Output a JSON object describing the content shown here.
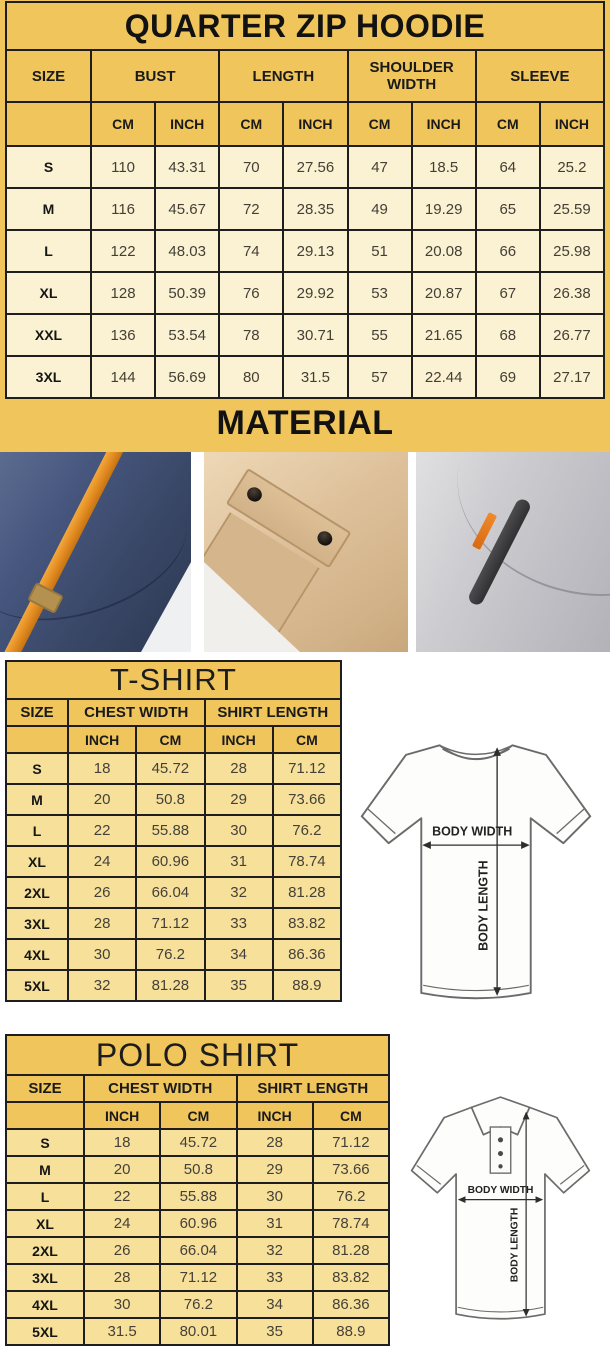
{
  "colors": {
    "gold": "#EFC55C",
    "hoodie_cell": "#FBF2D3",
    "shirt_cell": "#F6E09A",
    "border": "#1E1E1E",
    "navy_fabric": "#3A4868",
    "orange_accent": "#E08A21",
    "khaki_fabric": "#D9BB93",
    "gray_fabric": "#C7C7CB"
  },
  "hoodie": {
    "title": "QUARTER ZIP HOODIE",
    "size_label": "SIZE",
    "groups": [
      "BUST",
      "LENGTH",
      "SHOULDER WIDTH",
      "SLEEVE"
    ],
    "units": [
      "",
      "CM",
      "INCH",
      "CM",
      "INCH",
      "CM",
      "INCH",
      "CM",
      "INCH"
    ],
    "rows": [
      [
        "S",
        "110",
        "43.31",
        "70",
        "27.56",
        "47",
        "18.5",
        "64",
        "25.2"
      ],
      [
        "M",
        "116",
        "45.67",
        "72",
        "28.35",
        "49",
        "19.29",
        "65",
        "25.59"
      ],
      [
        "L",
        "122",
        "48.03",
        "74",
        "29.13",
        "51",
        "20.08",
        "66",
        "25.98"
      ],
      [
        "XL",
        "128",
        "50.39",
        "76",
        "29.92",
        "53",
        "20.87",
        "67",
        "26.38"
      ],
      [
        "XXL",
        "136",
        "53.54",
        "78",
        "30.71",
        "55",
        "21.65",
        "68",
        "26.77"
      ],
      [
        "3XL",
        "144",
        "56.69",
        "80",
        "31.5",
        "57",
        "22.44",
        "69",
        "27.17"
      ]
    ]
  },
  "material": {
    "title": "MATERIAL",
    "photos": [
      "navy-fleece-with-orange-drawstring",
      "khaki-cargo-pocket-with-snap-buttons",
      "gray-fleece-with-zipper-orange-pull"
    ]
  },
  "tshirt": {
    "title": "T-SHIRT",
    "size_label": "SIZE",
    "groups": [
      "CHEST WIDTH",
      "SHIRT LENGTH"
    ],
    "units": [
      "",
      "INCH",
      "CM",
      "INCH",
      "CM"
    ],
    "rows": [
      [
        "S",
        "18",
        "45.72",
        "28",
        "71.12"
      ],
      [
        "M",
        "20",
        "50.8",
        "29",
        "73.66"
      ],
      [
        "L",
        "22",
        "55.88",
        "30",
        "76.2"
      ],
      [
        "XL",
        "24",
        "60.96",
        "31",
        "78.74"
      ],
      [
        "2XL",
        "26",
        "66.04",
        "32",
        "81.28"
      ],
      [
        "3XL",
        "28",
        "71.12",
        "33",
        "83.82"
      ],
      [
        "4XL",
        "30",
        "76.2",
        "34",
        "86.36"
      ],
      [
        "5XL",
        "32",
        "81.28",
        "35",
        "88.9"
      ]
    ]
  },
  "polo": {
    "title": "POLO SHIRT",
    "size_label": "SIZE",
    "groups": [
      "CHEST WIDTH",
      "SHIRT LENGTH"
    ],
    "units": [
      "",
      "INCH",
      "CM",
      "INCH",
      "CM"
    ],
    "rows": [
      [
        "S",
        "18",
        "45.72",
        "28",
        "71.12"
      ],
      [
        "M",
        "20",
        "50.8",
        "29",
        "73.66"
      ],
      [
        "L",
        "22",
        "55.88",
        "30",
        "76.2"
      ],
      [
        "XL",
        "24",
        "60.96",
        "31",
        "78.74"
      ],
      [
        "2XL",
        "26",
        "66.04",
        "32",
        "81.28"
      ],
      [
        "3XL",
        "28",
        "71.12",
        "33",
        "83.82"
      ],
      [
        "4XL",
        "30",
        "76.2",
        "34",
        "86.36"
      ],
      [
        "5XL",
        "31.5",
        "80.01",
        "35",
        "88.9"
      ]
    ]
  },
  "diagram": {
    "body_width": "BODY WIDTH",
    "body_length": "BODY LENGTH"
  }
}
